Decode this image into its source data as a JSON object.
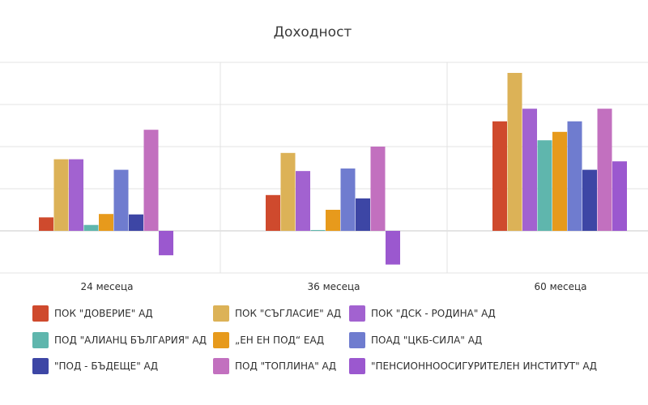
{
  "chart_data": {
    "type": "bar",
    "title": "Доходност",
    "categories": [
      "24 месеца",
      "36 месеца",
      "60 месеца"
    ],
    "ylim": [
      -10,
      40
    ],
    "grid": true,
    "legend_position": "bottom",
    "series": [
      {
        "name": "ПОК \"ДОВЕРИЕ\" АД",
        "color": "#cf4a2d",
        "values": [
          3.2,
          8.5,
          26.0
        ]
      },
      {
        "name": "ПОК \"СЪГЛАСИЕ\" АД",
        "color": "#dcb257",
        "values": [
          17.0,
          18.5,
          37.5
        ]
      },
      {
        "name": "ПОК \"ДСК - РОДИНА\" АД",
        "color": "#a262d0",
        "values": [
          17.0,
          14.2,
          29.0
        ]
      },
      {
        "name": "ПОД \"АЛИАНЦ БЪЛГАРИЯ\" АД",
        "color": "#5fb6ad",
        "values": [
          1.4,
          0.2,
          21.5
        ]
      },
      {
        "name": "„ЕН ЕН ПОД“ ЕАД",
        "color": "#e79a1c",
        "values": [
          4.0,
          5.0,
          23.5
        ]
      },
      {
        "name": "ПОАД \"ЦКБ-СИЛА\" АД",
        "color": "#6f7ccf",
        "values": [
          14.5,
          14.8,
          26.0
        ]
      },
      {
        "name": "\"ПОД - БЪДЕЩЕ\" АД",
        "color": "#3d46a5",
        "values": [
          3.9,
          7.7,
          14.5
        ]
      },
      {
        "name": "ПОД \"ТОПЛИНА\" АД",
        "color": "#c270bf",
        "values": [
          24.0,
          20.0,
          29.0
        ]
      },
      {
        "name": "\"ПЕНСИОННООСИГУРИТЕЛЕН ИНСТИТУТ\" АД",
        "color": "#9b58cf",
        "values": [
          -5.8,
          -8.0,
          16.5
        ]
      }
    ]
  }
}
